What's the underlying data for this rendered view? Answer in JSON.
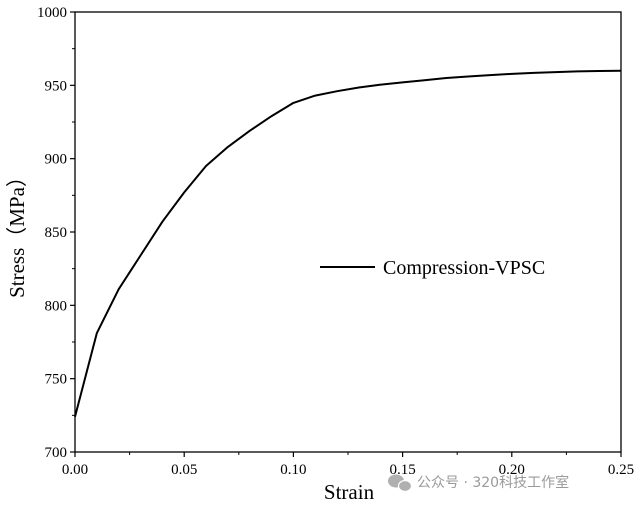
{
  "chart_data": {
    "type": "line",
    "xlabel": "Strain",
    "ylabel": "Stress（MPa）",
    "xlim": [
      0,
      0.25
    ],
    "ylim": [
      700,
      1000
    ],
    "x_ticks": [
      "0.00",
      "0.05",
      "0.10",
      "0.15",
      "0.20",
      "0.25"
    ],
    "y_ticks": [
      "700",
      "750",
      "800",
      "850",
      "900",
      "950",
      "1000"
    ],
    "grid": false,
    "legend_position": "right-center",
    "series": [
      {
        "name": "Compression-VPSC",
        "color": "#000000",
        "x": [
          0.0,
          0.01,
          0.02,
          0.03,
          0.04,
          0.05,
          0.06,
          0.07,
          0.08,
          0.09,
          0.1,
          0.11,
          0.12,
          0.13,
          0.14,
          0.15,
          0.16,
          0.17,
          0.18,
          0.19,
          0.2,
          0.21,
          0.22,
          0.23,
          0.24,
          0.25
        ],
        "y": [
          724,
          781,
          811,
          834,
          857,
          877,
          895,
          908,
          919,
          929,
          938,
          943,
          946,
          948.5,
          950.5,
          952,
          953.5,
          955,
          956,
          957,
          957.8,
          958.5,
          959,
          959.5,
          959.8,
          960
        ]
      }
    ]
  },
  "watermark": "公众号 · 320科技工作室"
}
